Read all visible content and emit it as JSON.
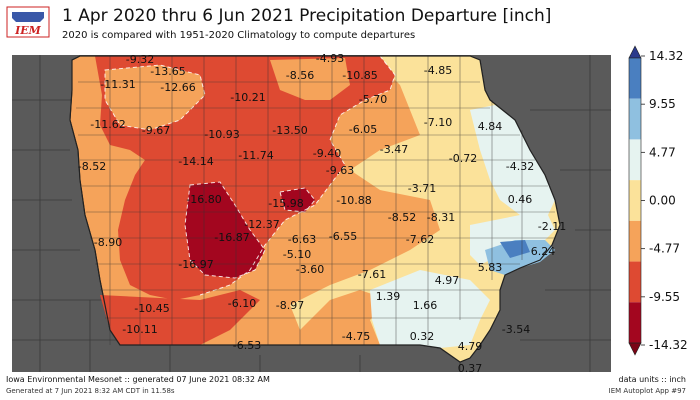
{
  "header": {
    "logo_text": "IEM",
    "title": "1 Apr 2020 thru 6 Jun 2021 Precipitation Departure [inch]",
    "subtitle": "2020 is compared with 1951-2020 Climatology to compute departures"
  },
  "colorbar": {
    "ticks": [
      "14.32",
      "9.55",
      "4.77",
      "0.00",
      "-4.77",
      "-9.55",
      "-14.32"
    ],
    "colors": [
      "#4a7fc0",
      "#8fc0e0",
      "#e6f3f0",
      "#fbe29a",
      "#f5a35a",
      "#de4a32",
      "#a3061f"
    ]
  },
  "map_labels": [
    {
      "text": "-9.32"
    },
    {
      "text": "-13.65"
    },
    {
      "text": "-11.31"
    },
    {
      "text": "-12.66"
    },
    {
      "text": "-8.56"
    },
    {
      "text": "-4.93"
    },
    {
      "text": "-10.85"
    },
    {
      "text": "-4.85"
    },
    {
      "text": "-10.21"
    },
    {
      "text": "-5.70"
    },
    {
      "text": "-11.62"
    },
    {
      "text": "-9.67"
    },
    {
      "text": "-10.93"
    },
    {
      "text": "-13.50"
    },
    {
      "text": "-6.05"
    },
    {
      "text": "-7.10"
    },
    {
      "text": "4.84"
    },
    {
      "text": "-8.52"
    },
    {
      "text": "-14.14"
    },
    {
      "text": "-11.74"
    },
    {
      "text": "-9.40"
    },
    {
      "text": "-3.47"
    },
    {
      "text": "-0.72"
    },
    {
      "text": "-4.32"
    },
    {
      "text": "-9.63"
    },
    {
      "text": "-3.71"
    },
    {
      "text": "-16.80"
    },
    {
      "text": "-15.98"
    },
    {
      "text": "-10.88"
    },
    {
      "text": "0.46"
    },
    {
      "text": "-12.37"
    },
    {
      "text": "-8.52"
    },
    {
      "text": "-8.31"
    },
    {
      "text": "-8.90"
    },
    {
      "text": "-16.87"
    },
    {
      "text": "-6.63"
    },
    {
      "text": "-6.55"
    },
    {
      "text": "-7.62"
    },
    {
      "text": "-2.11"
    },
    {
      "text": "-5.10"
    },
    {
      "text": "-16.97"
    },
    {
      "text": "-3.60"
    },
    {
      "text": "-7.61"
    },
    {
      "text": "5.83"
    },
    {
      "text": "6.24"
    },
    {
      "text": "4.97"
    },
    {
      "text": "1.39"
    },
    {
      "text": "1.66"
    },
    {
      "text": "-10.45"
    },
    {
      "text": "-6.10"
    },
    {
      "text": "-8.97"
    },
    {
      "text": "-10.11"
    },
    {
      "text": "-3.54"
    },
    {
      "text": "-6.53"
    },
    {
      "text": "-4.75"
    },
    {
      "text": "0.32"
    },
    {
      "text": "4.79"
    },
    {
      "text": "0.37"
    }
  ],
  "footer": {
    "left": "Iowa Environmental Mesonet :: generated 07 June 2021 08:32 AM",
    "left_small": "Generated at 7 Jun 2021 8:32 AM CDT in 11.58s",
    "right": "data units :: inch",
    "right_small": "IEM Autoplot App #97"
  }
}
